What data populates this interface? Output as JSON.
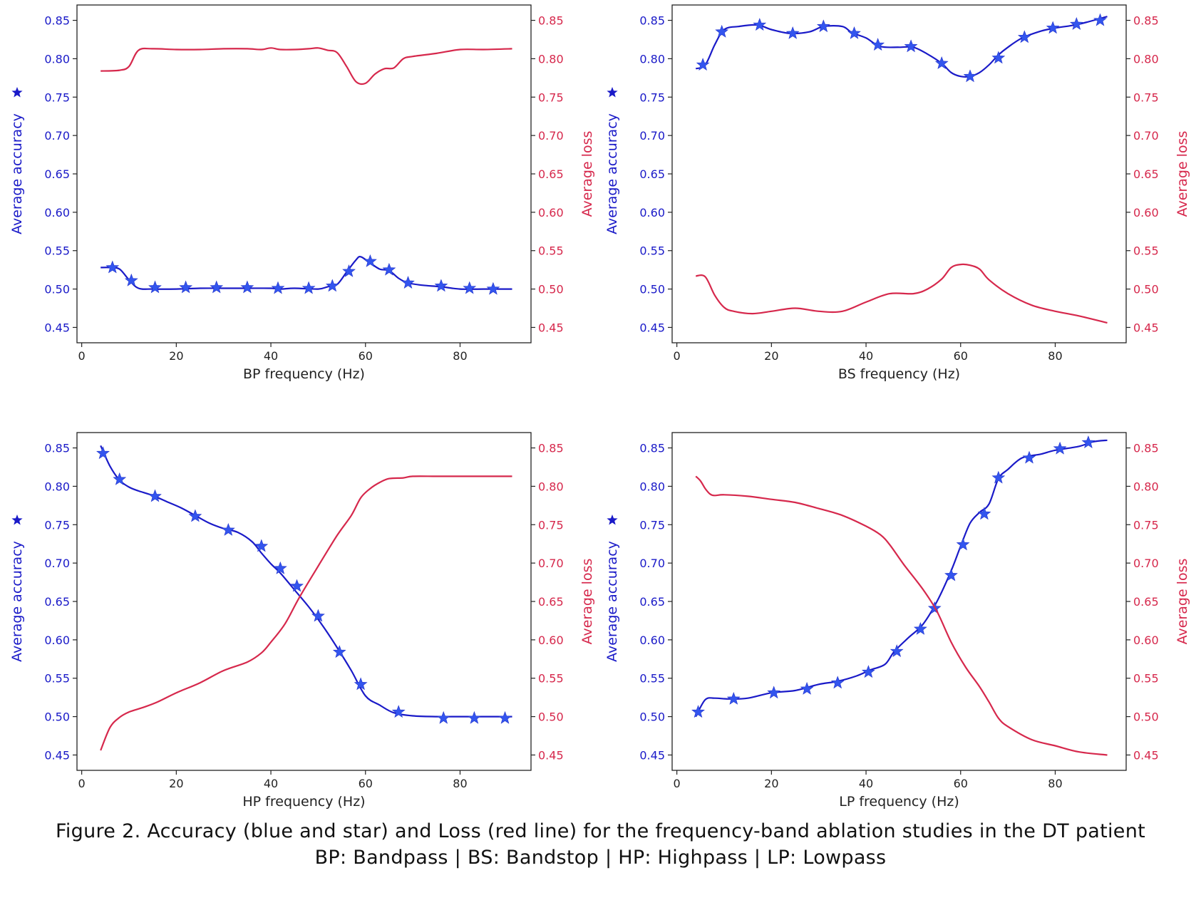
{
  "caption": {
    "line1": "Figure 2. Accuracy (blue and star) and Loss (red line) for the frequency-band ablation studies in the DT patient",
    "line2": "BP: Bandpass | BS: Bandstop | HP: Highpass | LP: Lowpass"
  },
  "colors": {
    "accuracy": "#1a1ac8",
    "star": "#3355ee",
    "loss": "#d6284c",
    "axis": "#222222"
  },
  "chart_data": [
    {
      "type": "line",
      "id": "bp",
      "title": "",
      "xlabel": "BP frequency (Hz)",
      "ylabel_left": "Average accuracy",
      "ylabel_right": "Average loss",
      "xlim": [
        -1,
        95
      ],
      "ylim_left": [
        0.43,
        0.87
      ],
      "ylim_right": [
        0.43,
        0.87
      ],
      "xticks": [
        0,
        20,
        40,
        60,
        80
      ],
      "yticks": [
        0.45,
        0.5,
        0.55,
        0.6,
        0.65,
        0.7,
        0.75,
        0.8,
        0.85
      ],
      "xtick_labels": [
        "0",
        "20",
        "40",
        "60",
        "80"
      ],
      "ytick_labels": [
        "0.45",
        "0.50",
        "0.55",
        "0.60",
        "0.65",
        "0.70",
        "0.75",
        "0.80",
        "0.85"
      ],
      "series": [
        {
          "role": "accuracy",
          "axis": "left",
          "marker": "star",
          "x": [
            4,
            6,
            8,
            10,
            12,
            15,
            20,
            25,
            30,
            35,
            40,
            42,
            45,
            50,
            52,
            54,
            56,
            58,
            59,
            61,
            63,
            65,
            67,
            69,
            72,
            76,
            80,
            85,
            91
          ],
          "y": [
            0.528,
            0.528,
            0.526,
            0.512,
            0.501,
            0.5,
            0.5,
            0.501,
            0.501,
            0.501,
            0.501,
            0.5,
            0.501,
            0.5,
            0.503,
            0.506,
            0.522,
            0.538,
            0.542,
            0.534,
            0.526,
            0.524,
            0.514,
            0.508,
            0.505,
            0.503,
            0.5,
            0.5,
            0.5
          ],
          "marker_x": [
            6.5,
            10.5,
            15.5,
            22,
            28.5,
            35,
            41.5,
            48,
            53,
            56.5,
            61,
            65,
            69,
            76,
            82,
            87
          ],
          "marker_y": [
            0.528,
            0.511,
            0.502,
            0.502,
            0.502,
            0.502,
            0.501,
            0.501,
            0.504,
            0.523,
            0.536,
            0.525,
            0.508,
            0.504,
            0.501,
            0.5
          ]
        },
        {
          "role": "loss",
          "axis": "right",
          "marker": "none",
          "x": [
            4,
            8,
            10,
            12,
            15,
            20,
            25,
            30,
            35,
            38,
            40,
            42,
            45,
            48,
            50,
            52,
            54,
            56,
            58,
            60,
            62,
            64,
            66,
            68,
            70,
            75,
            80,
            85,
            91
          ],
          "y": [
            0.784,
            0.785,
            0.79,
            0.811,
            0.813,
            0.812,
            0.812,
            0.813,
            0.813,
            0.812,
            0.814,
            0.812,
            0.812,
            0.813,
            0.814,
            0.811,
            0.808,
            0.79,
            0.77,
            0.768,
            0.78,
            0.787,
            0.788,
            0.8,
            0.803,
            0.807,
            0.812,
            0.812,
            0.813
          ]
        }
      ]
    },
    {
      "type": "line",
      "id": "bs",
      "title": "",
      "xlabel": "BS frequency (Hz)",
      "ylabel_left": "Average accuracy",
      "ylabel_right": "Average loss",
      "xlim": [
        -1,
        95
      ],
      "ylim_left": [
        0.43,
        0.87
      ],
      "ylim_right": [
        0.43,
        0.87
      ],
      "xticks": [
        0,
        20,
        40,
        60,
        80
      ],
      "yticks": [
        0.45,
        0.5,
        0.55,
        0.6,
        0.65,
        0.7,
        0.75,
        0.8,
        0.85
      ],
      "xtick_labels": [
        "0",
        "20",
        "40",
        "60",
        "80"
      ],
      "ytick_labels": [
        "0.45",
        "0.50",
        "0.55",
        "0.60",
        "0.65",
        "0.70",
        "0.75",
        "0.80",
        "0.85"
      ],
      "series": [
        {
          "role": "accuracy",
          "axis": "left",
          "marker": "star",
          "x": [
            4,
            6,
            8,
            10,
            13,
            17,
            20,
            24,
            28,
            31,
            35,
            37,
            40,
            43,
            47,
            50,
            53,
            56,
            58,
            60,
            62,
            64,
            66,
            68,
            70,
            73,
            77,
            80,
            85,
            91
          ],
          "y": [
            0.787,
            0.792,
            0.818,
            0.838,
            0.842,
            0.844,
            0.838,
            0.833,
            0.835,
            0.842,
            0.842,
            0.834,
            0.827,
            0.816,
            0.815,
            0.815,
            0.806,
            0.794,
            0.782,
            0.777,
            0.777,
            0.782,
            0.792,
            0.805,
            0.815,
            0.827,
            0.836,
            0.84,
            0.845,
            0.855
          ],
          "marker_x": [
            5.5,
            9.5,
            17.5,
            24.5,
            31,
            37.5,
            42.5,
            49.5,
            56,
            62,
            68,
            73.5,
            79.5,
            84.5,
            89.5
          ],
          "marker_y": [
            0.792,
            0.835,
            0.844,
            0.833,
            0.842,
            0.833,
            0.818,
            0.816,
            0.794,
            0.777,
            0.801,
            0.828,
            0.84,
            0.845,
            0.85
          ]
        },
        {
          "role": "loss",
          "axis": "right",
          "marker": "none",
          "x": [
            4,
            6,
            8,
            10,
            12,
            16,
            20,
            25,
            30,
            35,
            40,
            45,
            50,
            53,
            56,
            58,
            60,
            62,
            64,
            66,
            70,
            75,
            80,
            85,
            91
          ],
          "y": [
            0.517,
            0.516,
            0.492,
            0.476,
            0.471,
            0.468,
            0.471,
            0.475,
            0.471,
            0.471,
            0.483,
            0.494,
            0.494,
            0.5,
            0.513,
            0.528,
            0.532,
            0.531,
            0.526,
            0.512,
            0.494,
            0.479,
            0.471,
            0.465,
            0.456
          ]
        }
      ]
    },
    {
      "type": "line",
      "id": "hp",
      "title": "",
      "xlabel": "HP frequency (Hz)",
      "ylabel_left": "Average accuracy",
      "ylabel_right": "Average loss",
      "xlim": [
        -1,
        95
      ],
      "ylim_left": [
        0.43,
        0.87
      ],
      "ylim_right": [
        0.43,
        0.87
      ],
      "xticks": [
        0,
        20,
        40,
        60,
        80
      ],
      "yticks": [
        0.45,
        0.5,
        0.55,
        0.6,
        0.65,
        0.7,
        0.75,
        0.8,
        0.85
      ],
      "xtick_labels": [
        "0",
        "20",
        "40",
        "60",
        "80"
      ],
      "ytick_labels": [
        "0.45",
        "0.50",
        "0.55",
        "0.60",
        "0.65",
        "0.70",
        "0.75",
        "0.80",
        "0.85"
      ],
      "series": [
        {
          "role": "accuracy",
          "axis": "left",
          "marker": "star",
          "x": [
            4,
            6,
            8,
            10,
            12,
            15,
            18,
            21,
            24,
            27,
            30,
            33,
            36,
            38,
            40,
            42,
            45,
            48,
            51,
            54,
            57,
            60,
            63,
            66,
            70,
            75,
            80,
            85,
            91
          ],
          "y": [
            0.853,
            0.826,
            0.808,
            0.799,
            0.794,
            0.788,
            0.78,
            0.772,
            0.762,
            0.752,
            0.745,
            0.74,
            0.728,
            0.713,
            0.699,
            0.687,
            0.665,
            0.643,
            0.618,
            0.59,
            0.56,
            0.527,
            0.515,
            0.505,
            0.501,
            0.5,
            0.5,
            0.5,
            0.5
          ],
          "marker_x": [
            4.5,
            8,
            15.5,
            24,
            31,
            38,
            42,
            45.5,
            50,
            54.5,
            59,
            67,
            76.5,
            83,
            89.5
          ],
          "marker_y": [
            0.843,
            0.809,
            0.787,
            0.761,
            0.743,
            0.722,
            0.693,
            0.67,
            0.631,
            0.584,
            0.542,
            0.506,
            0.498,
            0.498,
            0.498
          ]
        },
        {
          "role": "loss",
          "axis": "right",
          "marker": "none",
          "x": [
            4,
            6,
            8,
            10,
            13,
            16,
            20,
            25,
            30,
            35,
            38,
            40,
            43,
            46,
            50,
            54,
            57,
            59,
            61,
            63,
            65,
            68,
            70,
            75,
            80,
            85,
            91
          ],
          "y": [
            0.456,
            0.486,
            0.499,
            0.506,
            0.512,
            0.519,
            0.531,
            0.544,
            0.56,
            0.571,
            0.583,
            0.597,
            0.621,
            0.655,
            0.696,
            0.736,
            0.762,
            0.785,
            0.797,
            0.805,
            0.81,
            0.811,
            0.813,
            0.813,
            0.813,
            0.813,
            0.813
          ]
        }
      ]
    },
    {
      "type": "line",
      "id": "lp",
      "title": "",
      "xlabel": "LP frequency (Hz)",
      "ylabel_left": "Average accuracy",
      "ylabel_right": "Average loss",
      "xlim": [
        -1,
        95
      ],
      "ylim_left": [
        0.43,
        0.87
      ],
      "ylim_right": [
        0.43,
        0.87
      ],
      "xticks": [
        0,
        20,
        40,
        60,
        80
      ],
      "yticks": [
        0.45,
        0.5,
        0.55,
        0.6,
        0.65,
        0.7,
        0.75,
        0.8,
        0.85
      ],
      "xtick_labels": [
        "0",
        "20",
        "40",
        "60",
        "80"
      ],
      "ytick_labels": [
        "0.45",
        "0.50",
        "0.55",
        "0.60",
        "0.65",
        "0.70",
        "0.75",
        "0.80",
        "0.85"
      ],
      "series": [
        {
          "role": "accuracy",
          "axis": "left",
          "marker": "star",
          "x": [
            4,
            6,
            8,
            11,
            15,
            20,
            25,
            30,
            34,
            38,
            41,
            44,
            46,
            49,
            52,
            55,
            58,
            60,
            62,
            64,
            66,
            68,
            70,
            73,
            77,
            80,
            85,
            88,
            91
          ],
          "y": [
            0.5,
            0.522,
            0.524,
            0.523,
            0.524,
            0.531,
            0.534,
            0.542,
            0.546,
            0.553,
            0.561,
            0.568,
            0.585,
            0.603,
            0.62,
            0.65,
            0.69,
            0.722,
            0.752,
            0.766,
            0.777,
            0.81,
            0.822,
            0.837,
            0.842,
            0.847,
            0.852,
            0.858,
            0.86
          ],
          "marker_x": [
            4.5,
            12,
            20.5,
            27.5,
            34,
            40.5,
            46.5,
            51.5,
            54.5,
            58,
            60.5,
            65,
            68,
            74.5,
            81,
            87
          ],
          "marker_y": [
            0.506,
            0.523,
            0.531,
            0.536,
            0.544,
            0.558,
            0.585,
            0.614,
            0.641,
            0.684,
            0.724,
            0.764,
            0.811,
            0.837,
            0.849,
            0.857
          ]
        },
        {
          "role": "loss",
          "axis": "right",
          "marker": "none",
          "x": [
            4,
            5,
            6,
            7,
            8,
            10,
            15,
            20,
            25,
            30,
            35,
            40,
            43,
            45,
            48,
            52,
            55,
            58,
            61,
            64,
            66,
            68,
            70,
            75,
            80,
            85,
            91
          ],
          "y": [
            0.813,
            0.807,
            0.797,
            0.79,
            0.788,
            0.789,
            0.787,
            0.783,
            0.779,
            0.771,
            0.762,
            0.748,
            0.737,
            0.724,
            0.698,
            0.666,
            0.637,
            0.597,
            0.565,
            0.539,
            0.519,
            0.498,
            0.487,
            0.47,
            0.462,
            0.454,
            0.45
          ]
        }
      ]
    }
  ]
}
